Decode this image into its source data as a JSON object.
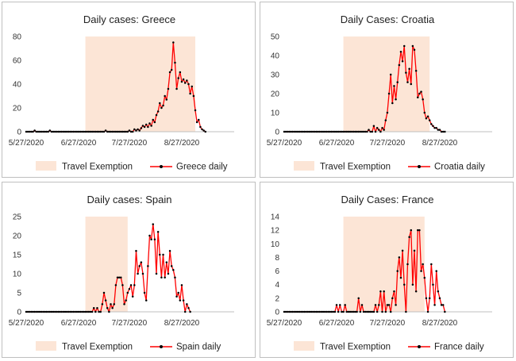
{
  "colors": {
    "band": "#fce5d6",
    "line": "#ff0000",
    "marker": "#000000"
  },
  "chart_data": [
    {
      "type": "line",
      "title": "Daily cases: Greece",
      "x_start": "2020-05-27",
      "xtick_labels": [
        "5/27/2020",
        "6/27/2020",
        "7/27/2020",
        "8/27/2020"
      ],
      "yticks": [
        0,
        20,
        40,
        60,
        80
      ],
      "ylim": [
        0,
        80
      ],
      "shaded": {
        "label": "Travel Exemption",
        "start": "2020-07-01",
        "end": "2020-09-04"
      },
      "series": [
        {
          "name": "Greece daily",
          "values": [
            0,
            0,
            0,
            0,
            0,
            1,
            0,
            0,
            0,
            0,
            0,
            0,
            0,
            0,
            1,
            0,
            0,
            0,
            0,
            0,
            0,
            0,
            0,
            0,
            0,
            0,
            0,
            0,
            0,
            0,
            0,
            0,
            0,
            0,
            0,
            0,
            0,
            0,
            0,
            0,
            0,
            0,
            0,
            0,
            0,
            0,
            0,
            1,
            0,
            0,
            0,
            0,
            0,
            0,
            0,
            0,
            0,
            0,
            0,
            0,
            0,
            1,
            0,
            0,
            2,
            1,
            2,
            1,
            3,
            5,
            4,
            6,
            4,
            7,
            5,
            10,
            8,
            14,
            17,
            24,
            20,
            22,
            30,
            27,
            36,
            50,
            52,
            75,
            58,
            36,
            45,
            50,
            42,
            44,
            41,
            43,
            40,
            32,
            38,
            30,
            18,
            8,
            10,
            4,
            2,
            1,
            0
          ]
        }
      ]
    },
    {
      "type": "line",
      "title": "Daily Cases: Croatia",
      "x_start": "2020-05-27",
      "xtick_labels": [
        "5/27/2020",
        "6/27/2020",
        "7/27/2020",
        "8/27/2020"
      ],
      "yticks": [
        0,
        10,
        20,
        30,
        40,
        50
      ],
      "ylim": [
        0,
        50
      ],
      "shaded": {
        "label": "Travel Exemption",
        "start": "2020-07-01",
        "end": "2020-08-21"
      },
      "series": [
        {
          "name": "Croatia daily",
          "values": [
            0,
            0,
            0,
            0,
            0,
            0,
            0,
            0,
            0,
            0,
            0,
            0,
            0,
            0,
            0,
            0,
            0,
            0,
            0,
            0,
            0,
            0,
            0,
            0,
            0,
            0,
            0,
            0,
            0,
            0,
            0,
            0,
            0,
            0,
            0,
            0,
            0,
            0,
            0,
            0,
            0,
            0,
            0,
            0,
            0,
            0,
            0,
            0,
            0,
            0,
            1,
            0,
            0,
            3,
            0,
            2,
            1,
            0,
            2,
            1,
            6,
            10,
            20,
            30,
            15,
            24,
            17,
            26,
            35,
            42,
            37,
            45,
            31,
            26,
            33,
            25,
            45,
            43,
            32,
            18,
            20,
            21,
            17,
            10,
            7,
            8,
            6,
            4,
            3,
            2,
            2,
            1,
            1,
            0,
            0,
            0
          ]
        }
      ]
    },
    {
      "type": "line",
      "title": "Daily cases: Spain",
      "x_start": "2020-05-27",
      "xtick_labels": [
        "5/27/2020",
        "6/27/2020",
        "7/27/2020",
        "8/27/2020"
      ],
      "yticks": [
        0,
        5,
        10,
        15,
        20,
        25
      ],
      "ylim": [
        0,
        25
      ],
      "shaded": {
        "label": "Travel Exemption",
        "start": "2020-07-01",
        "end": "2020-07-26"
      },
      "series": [
        {
          "name": "Spain daily",
          "values": [
            0,
            0,
            0,
            0,
            0,
            0,
            0,
            0,
            0,
            0,
            0,
            0,
            0,
            0,
            0,
            0,
            0,
            0,
            0,
            0,
            0,
            0,
            0,
            0,
            0,
            0,
            0,
            0,
            0,
            0,
            0,
            0,
            0,
            0,
            0,
            0,
            0,
            0,
            0,
            0,
            1,
            0,
            1,
            0,
            0,
            2,
            5,
            3,
            1,
            0,
            2,
            1,
            2,
            7,
            9,
            9,
            9,
            7,
            2,
            3,
            5,
            6,
            7,
            4,
            7,
            16,
            10,
            12,
            13,
            10,
            5,
            3,
            12,
            20,
            19,
            23,
            19,
            10,
            21,
            15,
            9,
            15,
            9,
            13,
            10,
            16,
            12,
            11,
            9,
            4,
            5,
            3,
            7,
            3,
            0,
            2,
            1,
            0
          ]
        }
      ]
    },
    {
      "type": "line",
      "title": "Daily Cases: France",
      "x_start": "2020-05-27",
      "xtick_labels": [
        "5/27/2020",
        "6/27/2020",
        "7/27/2020",
        "8/27/2020"
      ],
      "yticks": [
        0,
        2,
        4,
        6,
        8,
        10,
        12,
        14
      ],
      "ylim": [
        0,
        14
      ],
      "shaded": {
        "label": "Travel Exemption",
        "start": "2020-07-01",
        "end": "2020-08-18"
      },
      "series": [
        {
          "name": "France daily",
          "values": [
            0,
            0,
            0,
            0,
            0,
            0,
            0,
            0,
            0,
            0,
            0,
            0,
            0,
            0,
            0,
            0,
            0,
            0,
            0,
            0,
            0,
            0,
            0,
            0,
            0,
            0,
            0,
            0,
            0,
            0,
            0,
            1,
            0,
            1,
            0,
            0,
            1,
            0,
            0,
            0,
            0,
            0,
            0,
            0,
            2,
            0,
            1,
            0,
            0,
            0,
            0,
            0,
            0,
            0,
            1,
            0,
            1,
            3,
            0,
            3,
            0,
            1,
            1,
            0,
            2,
            3,
            1,
            6,
            8,
            5,
            9,
            4,
            0,
            7,
            11,
            12,
            4,
            9,
            3,
            12,
            12,
            6,
            7,
            5,
            2,
            0,
            2,
            7,
            4,
            1,
            6,
            3,
            2,
            1,
            1,
            0
          ]
        }
      ]
    }
  ]
}
